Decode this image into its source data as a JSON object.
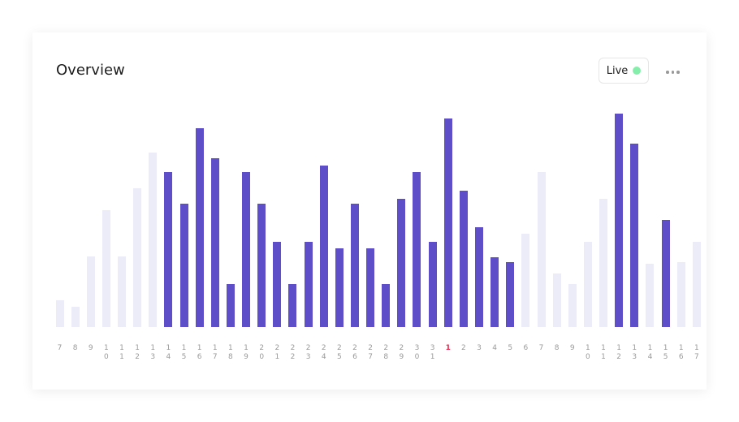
{
  "chart_data": {
    "type": "bar",
    "title": "Overview",
    "categories": [
      "7",
      "8",
      "9",
      "10",
      "11",
      "12",
      "13",
      "14",
      "15",
      "16",
      "17",
      "18",
      "19",
      "20",
      "21",
      "22",
      "23",
      "24",
      "25",
      "26",
      "27",
      "28",
      "29",
      "30",
      "31",
      "1",
      "2",
      "3",
      "4",
      "5",
      "6",
      "7",
      "8",
      "9",
      "10",
      "11",
      "12",
      "13",
      "14",
      "15",
      "16",
      "17"
    ],
    "values": [
      33,
      25,
      87,
      144,
      87,
      171,
      215,
      191,
      152,
      245,
      208,
      53,
      191,
      152,
      105,
      53,
      105,
      199,
      97,
      152,
      97,
      53,
      158,
      191,
      105,
      257,
      168,
      123,
      86,
      80,
      115,
      191,
      66,
      53,
      105,
      158,
      263,
      226,
      78,
      132,
      80,
      105
    ],
    "colors": [
      "#ecebf8",
      "#ecebf8",
      "#ecebf8",
      "#ecebf8",
      "#ecebf8",
      "#ecebf8",
      "#ecebf8",
      "#5e4ec8",
      "#5e4ec8",
      "#5e4ec8",
      "#5e4ec8",
      "#5e4ec8",
      "#5e4ec8",
      "#5e4ec8",
      "#5e4ec8",
      "#5e4ec8",
      "#5e4ec8",
      "#5e4ec8",
      "#5e4ec8",
      "#5e4ec8",
      "#5e4ec8",
      "#5e4ec8",
      "#5e4ec8",
      "#5e4ec8",
      "#5e4ec8",
      "#5e4ec8",
      "#5e4ec8",
      "#5e4ec8",
      "#5e4ec8",
      "#5e4ec8",
      "#ecebf8",
      "#ecebf8",
      "#ecebf8",
      "#ecebf8",
      "#ecebf8",
      "#ecebf8",
      "#5e4ec8",
      "#5e4ec8",
      "#ecebf8",
      "#5e4ec8",
      "#ecebf8",
      "#ecebf8"
    ],
    "current_category": 25,
    "ylim": [
      0,
      270
    ]
  },
  "controls": {
    "live": "Live"
  }
}
